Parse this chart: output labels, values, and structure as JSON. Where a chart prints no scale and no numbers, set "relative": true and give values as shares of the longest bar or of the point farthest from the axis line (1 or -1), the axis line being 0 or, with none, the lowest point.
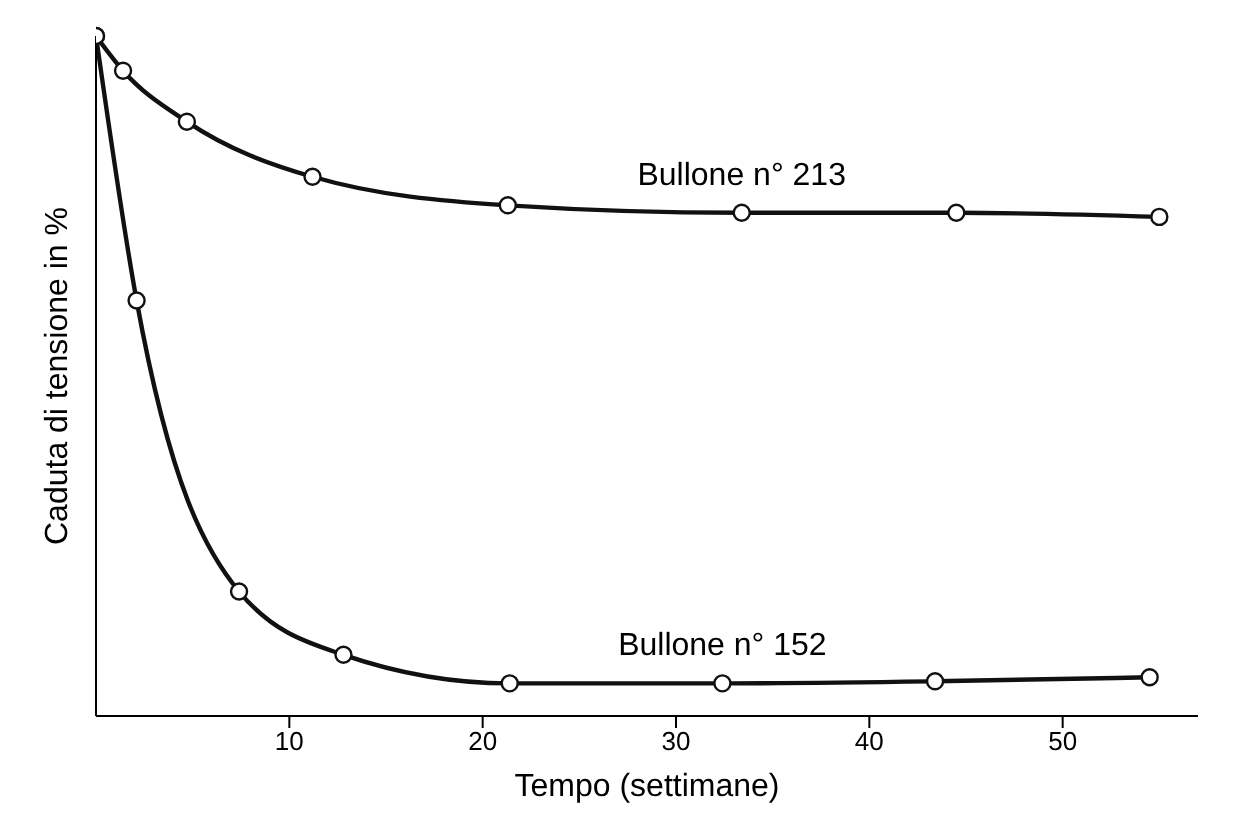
{
  "chart_data": {
    "type": "line",
    "xlabel": "Tempo (settimane)",
    "ylabel": "Caduta di tensione in %",
    "relative": true,
    "xlim": [
      0,
      57
    ],
    "xticks": [
      10,
      20,
      30,
      40,
      50
    ],
    "marker": "circle",
    "line_style": "solid",
    "series": [
      {
        "name": "Bullone n° 213",
        "color": "#111111",
        "x": [
          0,
          1.4,
          4.7,
          11.2,
          21.3,
          33.4,
          44.5,
          55
        ],
        "values": [
          1,
          0.949,
          0.874,
          0.793,
          0.751,
          0.74,
          0.74,
          0.734
        ]
      },
      {
        "name": "Bullone n° 152",
        "color": "#111111",
        "x": [
          0,
          2.1,
          7.4,
          12.8,
          21.4,
          32.4,
          43.4,
          54.5
        ],
        "values": [
          1,
          0.611,
          0.183,
          0.09,
          0.048,
          0.048,
          0.051,
          0.057
        ]
      }
    ]
  }
}
